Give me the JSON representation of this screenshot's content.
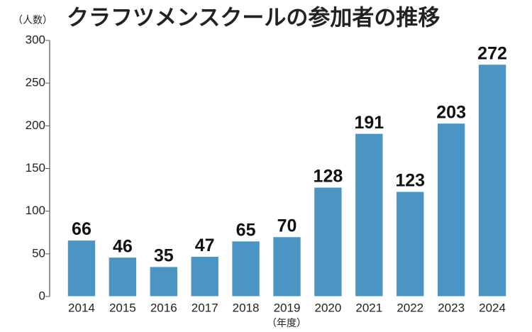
{
  "chart_data": {
    "type": "bar",
    "title": "クラフツメンスクールの参加者の推移",
    "y_label": "（人数）",
    "x_label": "（年度）",
    "categories": [
      "2014",
      "2015",
      "2016",
      "2017",
      "2018",
      "2019",
      "2020",
      "2021",
      "2022",
      "2023",
      "2024"
    ],
    "values": [
      66,
      46,
      35,
      47,
      65,
      70,
      128,
      191,
      123,
      203,
      272
    ],
    "color": "#4a95c4",
    "ylim": [
      0,
      300
    ],
    "yticks": [
      0,
      50,
      100,
      150,
      200,
      250,
      300
    ],
    "grid": false
  }
}
